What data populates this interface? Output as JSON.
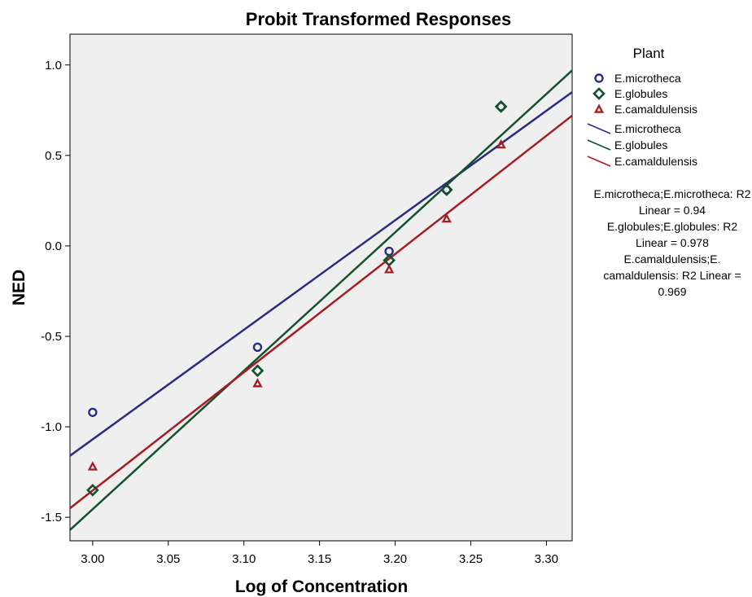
{
  "chart_data": {
    "type": "scatter",
    "title": "Probit Transformed Responses",
    "xlabel": "Log of Concentration",
    "ylabel": "NED",
    "xlim": [
      2.985,
      3.317
    ],
    "ylim": [
      -1.63,
      1.17
    ],
    "xticks": [
      "3.00",
      "3.05",
      "3.10",
      "3.15",
      "3.20",
      "3.25",
      "3.30"
    ],
    "yticks": [
      "1.0",
      "0.5",
      "0.0",
      "-0.5",
      "-1.0",
      "-1.5"
    ],
    "grid": false,
    "background": "#efefef",
    "legend": {
      "title": "Plant",
      "placement": "right",
      "marker_entries": [
        "E.microtheca",
        "E.globules",
        "E.camaldulensis"
      ],
      "line_entries": [
        "E.microtheca",
        "E.globules",
        "E.camaldulensis"
      ]
    },
    "series": [
      {
        "name": "E.microtheca",
        "marker": "circle",
        "color": "#2b2b7f",
        "x": [
          3.0,
          3.109,
          3.196,
          3.234,
          3.27
        ],
        "y": [
          -0.92,
          -0.56,
          -0.03,
          0.31,
          0.77
        ],
        "fit_line": [
          [
            2.985,
            -1.16
          ],
          [
            3.317,
            0.85
          ]
        ]
      },
      {
        "name": "E.globules",
        "marker": "diamond",
        "color": "#12512e",
        "x": [
          3.0,
          3.109,
          3.196,
          3.234,
          3.27
        ],
        "y": [
          -1.35,
          -0.69,
          -0.08,
          0.31,
          0.77
        ],
        "fit_line": [
          [
            2.985,
            -1.57
          ],
          [
            3.317,
            0.97
          ]
        ]
      },
      {
        "name": "E.camaldulensis",
        "marker": "triangle",
        "color": "#a61c24",
        "x": [
          3.0,
          3.109,
          3.196,
          3.234,
          3.27
        ],
        "y": [
          -1.22,
          -0.76,
          -0.13,
          0.15,
          0.56
        ],
        "fit_line": [
          [
            2.985,
            -1.45
          ],
          [
            3.317,
            0.72
          ]
        ]
      }
    ],
    "annotations": [
      {
        "lines": [
          "E.microtheca;E.microtheca: R2",
          "Linear = 0.94"
        ]
      },
      {
        "lines": [
          "E.globules;E.globules: R2",
          "Linear = 0.978"
        ]
      },
      {
        "lines": [
          "E.camaldulensis;E.",
          "camaldulensis: R2  Linear =",
          "0.969"
        ]
      }
    ]
  }
}
